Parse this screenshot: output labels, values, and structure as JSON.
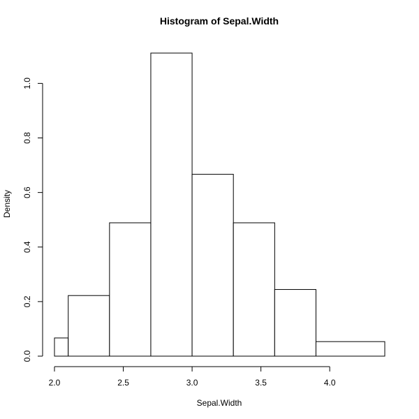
{
  "chart_data": {
    "type": "bar",
    "title": "Histogram of Sepal.Width",
    "xlabel": "Sepal.Width",
    "ylabel": "Density",
    "bins": [
      {
        "start": 2.0,
        "end": 2.1,
        "density": 0.0667
      },
      {
        "start": 2.1,
        "end": 2.4,
        "density": 0.2222
      },
      {
        "start": 2.4,
        "end": 2.7,
        "density": 0.4889
      },
      {
        "start": 2.7,
        "end": 3.0,
        "density": 1.1111
      },
      {
        "start": 3.0,
        "end": 3.3,
        "density": 0.6667
      },
      {
        "start": 3.3,
        "end": 3.6,
        "density": 0.4889
      },
      {
        "start": 3.6,
        "end": 3.9,
        "density": 0.2444
      },
      {
        "start": 3.9,
        "end": 4.4,
        "density": 0.0533
      }
    ],
    "xlim": [
      2.0,
      4.4
    ],
    "ylim": [
      0,
      1.1111
    ],
    "x_ticks": [
      2.0,
      2.5,
      3.0,
      3.5,
      4.0
    ],
    "x_tick_labels": [
      "2.0",
      "2.5",
      "3.0",
      "3.5",
      "4.0"
    ],
    "y_ticks": [
      0,
      0.2,
      0.4,
      0.6,
      0.8,
      1.0
    ],
    "y_tick_labels": [
      "0.0",
      "0.2",
      "0.4",
      "0.6",
      "0.8",
      "1.0"
    ],
    "grid": false,
    "legend": "none",
    "bar_fill": "#ffffff",
    "bar_stroke": "#000000"
  }
}
